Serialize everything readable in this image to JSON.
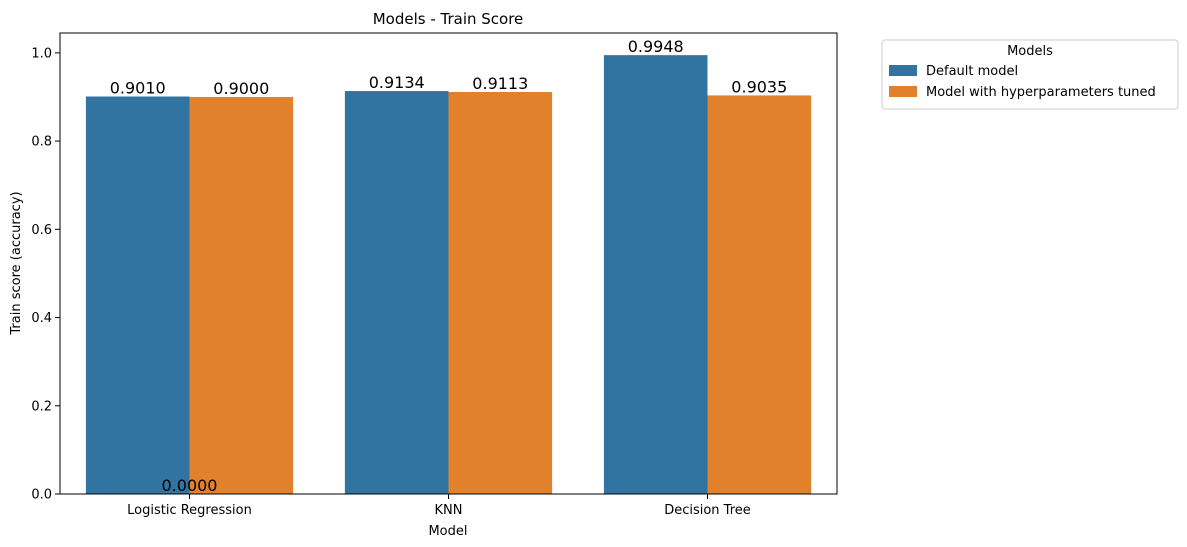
{
  "chart_data": {
    "type": "bar",
    "title": "Models - Train Score",
    "xlabel": "Model",
    "ylabel": "Train score (accuracy)",
    "categories": [
      "Logistic Regression",
      "KNN",
      "Decision Tree"
    ],
    "series": [
      {
        "name": "Default model",
        "color": "#3274a1",
        "values": [
          0.901,
          0.9134,
          0.9948
        ],
        "labels": [
          "0.9010",
          "0.9134",
          "0.9948"
        ]
      },
      {
        "name": "Model with hyperparameters tuned",
        "color": "#e1812c",
        "values": [
          0.9,
          0.9113,
          0.9035
        ],
        "labels": [
          "0.9000",
          "0.9113",
          "0.9035"
        ]
      }
    ],
    "extra_labels": [
      {
        "category": "Logistic Regression",
        "value": 0,
        "text": "0.0000"
      }
    ],
    "ylim": [
      0,
      1.045
    ],
    "yticks": [
      0.0,
      0.2,
      0.4,
      0.6,
      0.8,
      1.0
    ],
    "ytick_labels": [
      "0.0",
      "0.2",
      "0.4",
      "0.6",
      "0.8",
      "1.0"
    ],
    "grid": false,
    "legend": {
      "title": "Models",
      "placement": "outside-top-right"
    }
  }
}
